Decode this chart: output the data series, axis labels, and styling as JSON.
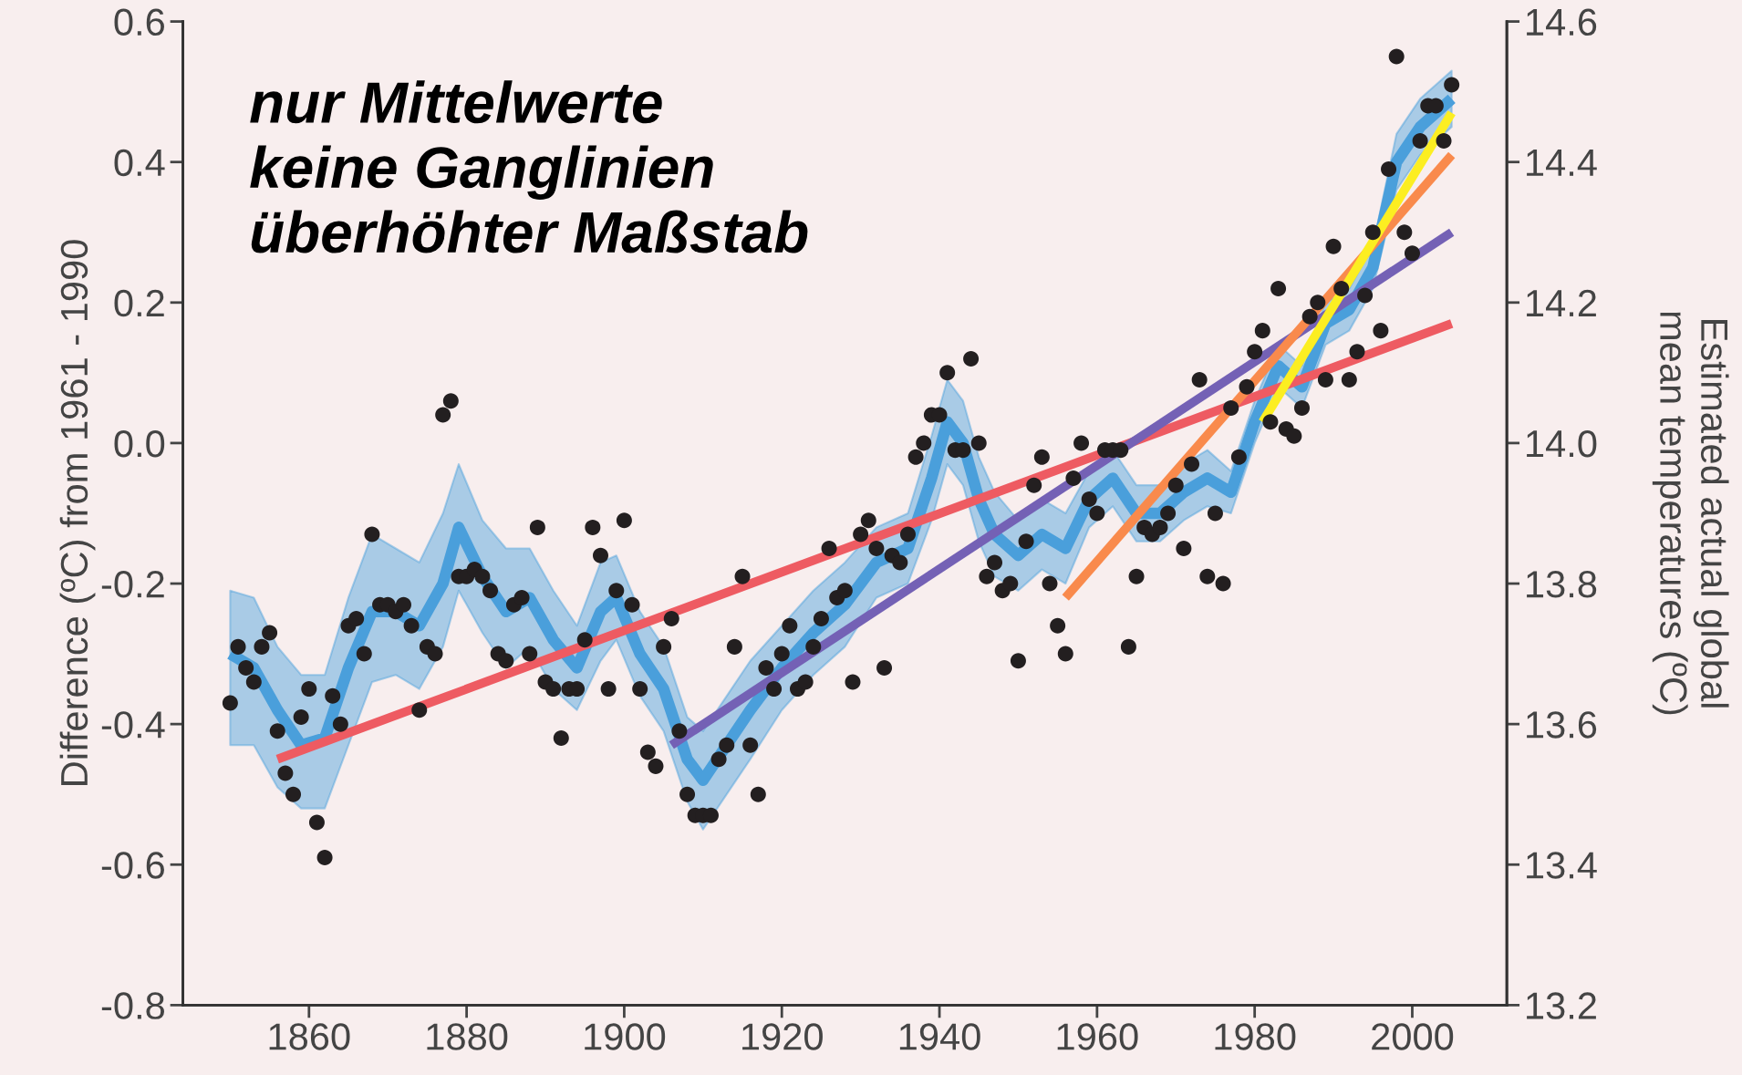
{
  "chart_data": {
    "type": "line",
    "ylabel": "Difference (ºC) from 1961 - 1990",
    "y2label": "Estimated actual global\nmean temperatures (ºC)",
    "annotations": [
      "nur Mittelwerte\nkeine Ganglinien\nüberhöhter Maßstab"
    ],
    "xlim": [
      1844,
      2012
    ],
    "xticks": [
      1860,
      1880,
      1900,
      1920,
      1940,
      1960,
      1980,
      2000
    ],
    "ylim": [
      -0.8,
      0.6
    ],
    "yticks": [
      {
        "value": -0.8,
        "label": "-0.8"
      },
      {
        "value": -0.6,
        "label": "-0.6"
      },
      {
        "value": -0.4,
        "label": "-0.4"
      },
      {
        "value": -0.2,
        "label": "-0.2"
      },
      {
        "value": 0,
        "label": "0.0"
      },
      {
        "value": 0.2,
        "label": "0.2"
      },
      {
        "value": 0.4,
        "label": "0.4"
      },
      {
        "value": 0.6,
        "label": "0.6"
      }
    ],
    "y2lim": [
      13.2,
      14.6
    ],
    "y2ticks": [
      13.2,
      13.4,
      13.6,
      13.8,
      {
        "value": 14.0,
        "label": "14.0"
      },
      14.2,
      14.4,
      14.6
    ],
    "grid": false,
    "legend": false,
    "series": [
      {
        "type": "scatter",
        "color": "#231f20",
        "marker": "circle",
        "x": [
          1850,
          1851,
          1852,
          1853,
          1854,
          1855,
          1856,
          1857,
          1858,
          1859,
          1860,
          1861,
          1862,
          1863,
          1864,
          1865,
          1866,
          1867,
          1868,
          1869,
          1870,
          1871,
          1872,
          1873,
          1874,
          1875,
          1876,
          1877,
          1878,
          1879,
          1880,
          1881,
          1882,
          1883,
          1884,
          1885,
          1886,
          1887,
          1888,
          1889,
          1890,
          1891,
          1892,
          1893,
          1894,
          1895,
          1896,
          1897,
          1898,
          1899,
          1900,
          1901,
          1902,
          1903,
          1904,
          1905,
          1906,
          1907,
          1908,
          1909,
          1910,
          1911,
          1912,
          1913,
          1914,
          1915,
          1916,
          1917,
          1918,
          1919,
          1920,
          1921,
          1922,
          1923,
          1924,
          1925,
          1926,
          1927,
          1928,
          1929,
          1930,
          1931,
          1932,
          1933,
          1934,
          1935,
          1936,
          1937,
          1938,
          1939,
          1940,
          1941,
          1942,
          1943,
          1944,
          1945,
          1946,
          1947,
          1948,
          1949,
          1950,
          1951,
          1952,
          1953,
          1954,
          1955,
          1956,
          1957,
          1958,
          1959,
          1960,
          1961,
          1962,
          1963,
          1964,
          1965,
          1966,
          1967,
          1968,
          1969,
          1970,
          1971,
          1972,
          1973,
          1974,
          1975,
          1976,
          1977,
          1978,
          1979,
          1980,
          1981,
          1982,
          1983,
          1984,
          1985,
          1986,
          1987,
          1988,
          1989,
          1990,
          1991,
          1992,
          1993,
          1994,
          1995,
          1996,
          1997,
          1998,
          1999,
          2000,
          2001,
          2002,
          2003,
          2004,
          2005
        ],
        "values": [
          -0.37,
          -0.29,
          -0.32,
          -0.34,
          -0.29,
          -0.27,
          -0.41,
          -0.47,
          -0.5,
          -0.39,
          -0.35,
          -0.54,
          -0.59,
          -0.36,
          -0.4,
          -0.26,
          -0.25,
          -0.3,
          -0.13,
          -0.23,
          -0.23,
          -0.24,
          -0.23,
          -0.26,
          -0.38,
          -0.29,
          -0.3,
          0.04,
          0.06,
          -0.19,
          -0.19,
          -0.18,
          -0.19,
          -0.21,
          -0.3,
          -0.31,
          -0.23,
          -0.22,
          -0.3,
          -0.12,
          -0.34,
          -0.35,
          -0.42,
          -0.35,
          -0.35,
          -0.28,
          -0.12,
          -0.16,
          -0.35,
          -0.21,
          -0.11,
          -0.23,
          -0.35,
          -0.44,
          -0.46,
          -0.29,
          -0.25,
          -0.41,
          -0.5,
          -0.53,
          -0.53,
          -0.53,
          -0.45,
          -0.43,
          -0.29,
          -0.19,
          -0.43,
          -0.5,
          -0.32,
          -0.35,
          -0.3,
          -0.26,
          -0.35,
          -0.34,
          -0.29,
          -0.25,
          -0.15,
          -0.22,
          -0.21,
          -0.34,
          -0.13,
          -0.11,
          -0.15,
          -0.32,
          -0.16,
          -0.17,
          -0.13,
          -0.02,
          0.0,
          0.04,
          0.04,
          0.1,
          -0.01,
          -0.01,
          0.12,
          0.0,
          -0.19,
          -0.17,
          -0.21,
          -0.2,
          -0.31,
          -0.14,
          -0.06,
          -0.02,
          -0.2,
          -0.26,
          -0.3,
          -0.05,
          0.0,
          -0.08,
          -0.1,
          -0.01,
          -0.01,
          -0.01,
          -0.29,
          -0.19,
          -0.12,
          -0.13,
          -0.12,
          -0.1,
          -0.06,
          -0.15,
          -0.03,
          0.09,
          -0.19,
          -0.1,
          -0.2,
          0.05,
          -0.02,
          0.08,
          0.13,
          0.16,
          0.03,
          0.22,
          0.02,
          0.01,
          0.05,
          0.18,
          0.2,
          0.09,
          0.28,
          0.22,
          0.09,
          0.13,
          0.21,
          0.3,
          0.16,
          0.39,
          0.55,
          0.3,
          0.27,
          0.43,
          0.48,
          0.48,
          0.43,
          0.51
        ]
      },
      {
        "color": "#4a9fdb",
        "x": [
          1850,
          1853,
          1856,
          1859,
          1862,
          1865,
          1868,
          1871,
          1874,
          1877,
          1879,
          1882,
          1885,
          1888,
          1891,
          1894,
          1897,
          1899,
          1902,
          1905,
          1908,
          1910,
          1913,
          1916,
          1920,
          1924,
          1928,
          1932,
          1936,
          1939,
          1941,
          1943,
          1945,
          1947,
          1950,
          1953,
          1956,
          1959,
          1962,
          1965,
          1968,
          1971,
          1974,
          1977,
          1980,
          1983,
          1986,
          1989,
          1992,
          1995,
          1998,
          2001,
          2004,
          2005
        ],
        "values": [
          -0.3,
          -0.32,
          -0.38,
          -0.43,
          -0.42,
          -0.32,
          -0.24,
          -0.24,
          -0.26,
          -0.2,
          -0.12,
          -0.19,
          -0.24,
          -0.22,
          -0.28,
          -0.32,
          -0.24,
          -0.22,
          -0.3,
          -0.35,
          -0.45,
          -0.48,
          -0.43,
          -0.38,
          -0.32,
          -0.27,
          -0.23,
          -0.17,
          -0.15,
          -0.05,
          0.03,
          0.0,
          -0.08,
          -0.13,
          -0.16,
          -0.13,
          -0.15,
          -0.08,
          -0.05,
          -0.1,
          -0.1,
          -0.07,
          -0.05,
          -0.07,
          0.03,
          0.11,
          0.08,
          0.17,
          0.19,
          0.25,
          0.4,
          0.45,
          0.48,
          0.49
        ],
        "lower": [
          -0.43,
          -0.43,
          -0.49,
          -0.52,
          -0.52,
          -0.43,
          -0.34,
          -0.33,
          -0.35,
          -0.29,
          -0.21,
          -0.27,
          -0.32,
          -0.29,
          -0.35,
          -0.38,
          -0.31,
          -0.28,
          -0.36,
          -0.41,
          -0.51,
          -0.55,
          -0.5,
          -0.45,
          -0.38,
          -0.33,
          -0.29,
          -0.22,
          -0.2,
          -0.11,
          -0.03,
          -0.06,
          -0.14,
          -0.19,
          -0.21,
          -0.18,
          -0.2,
          -0.12,
          -0.09,
          -0.14,
          -0.14,
          -0.11,
          -0.09,
          -0.1,
          0.0,
          0.08,
          0.05,
          0.14,
          0.16,
          0.22,
          0.36,
          0.41,
          0.44,
          0.45
        ],
        "upper": [
          -0.21,
          -0.22,
          -0.29,
          -0.33,
          -0.33,
          -0.22,
          -0.13,
          -0.15,
          -0.17,
          -0.1,
          -0.03,
          -0.11,
          -0.15,
          -0.15,
          -0.21,
          -0.26,
          -0.17,
          -0.16,
          -0.24,
          -0.29,
          -0.39,
          -0.41,
          -0.36,
          -0.31,
          -0.26,
          -0.21,
          -0.17,
          -0.12,
          -0.1,
          0.01,
          0.09,
          0.06,
          -0.02,
          -0.07,
          -0.11,
          -0.08,
          -0.1,
          -0.04,
          -0.01,
          -0.06,
          -0.06,
          -0.03,
          -0.01,
          -0.04,
          0.06,
          0.14,
          0.11,
          0.2,
          0.22,
          0.28,
          0.44,
          0.49,
          0.52,
          0.53
        ]
      },
      {
        "color": "#ee5b62",
        "x": [
          1856,
          2005
        ],
        "values": [
          -0.45,
          0.17
        ]
      },
      {
        "color": "#7461b5",
        "x": [
          1906,
          2005
        ],
        "values": [
          -0.43,
          0.3
        ]
      },
      {
        "color": "#f98a4c",
        "x": [
          1956,
          2005
        ],
        "values": [
          -0.22,
          0.41
        ]
      },
      {
        "color": "#fcee21",
        "x": [
          1981,
          2005
        ],
        "values": [
          0.03,
          0.47
        ]
      }
    ]
  }
}
